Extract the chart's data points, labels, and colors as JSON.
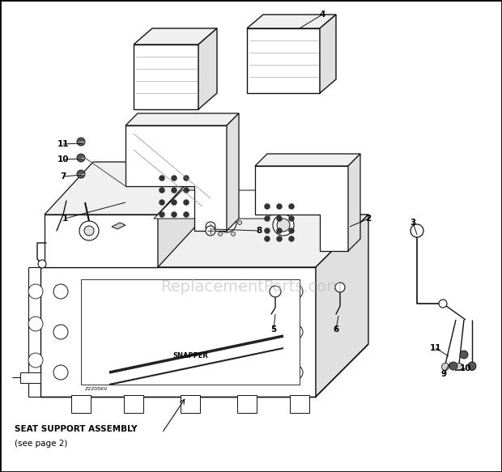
{
  "bg": "#ffffff",
  "lc": "#111111",
  "watermark": "ReplacementParts.com",
  "watermark_color": "#bbbbbb",
  "bottom_text1": "SEAT SUPPORT ASSEMBLY",
  "bottom_text2": "(see page 2)",
  "label_fs": 7.5,
  "wm_fs": 14
}
